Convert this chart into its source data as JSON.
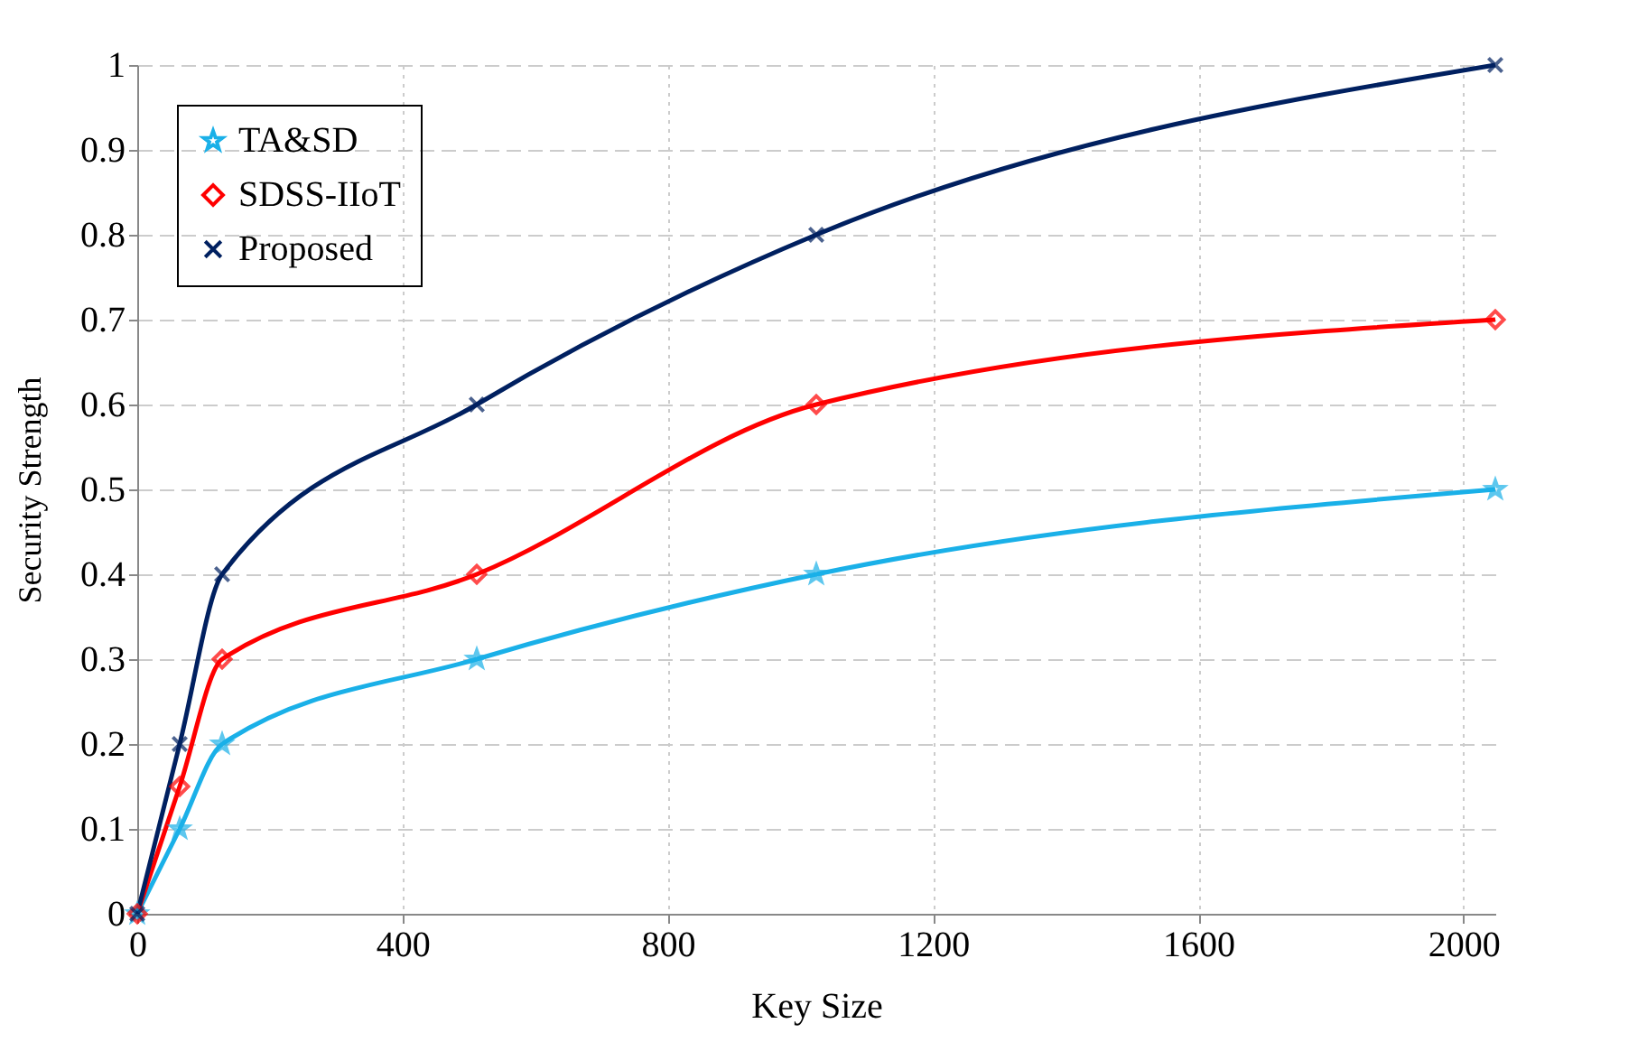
{
  "chart_data": {
    "type": "line",
    "xlabel": "Key Size",
    "ylabel": "Security Strength",
    "x": [
      0,
      64,
      128,
      512,
      1024,
      2048
    ],
    "series": [
      {
        "name": "TA&SD",
        "color": "#1ab0e8",
        "marker": "star",
        "values": [
          0,
          0.1,
          0.2,
          0.3,
          0.4,
          0.5
        ]
      },
      {
        "name": "SDSS-IIoT",
        "color": "#ff0000",
        "marker": "diamond",
        "values": [
          0,
          0.15,
          0.3,
          0.4,
          0.6,
          0.7
        ]
      },
      {
        "name": "Proposed",
        "color": "#002060",
        "marker": "cross",
        "values": [
          0,
          0.2,
          0.4,
          0.6,
          0.8,
          1
        ]
      }
    ],
    "xlim": [
      0,
      2048
    ],
    "xticks": [
      0,
      400,
      800,
      1200,
      1600,
      2000
    ],
    "ylim": [
      0,
      1
    ],
    "yticks": [
      0,
      0.1,
      0.2,
      0.3,
      0.4,
      0.5,
      0.6,
      0.7,
      0.8,
      0.9,
      1
    ],
    "grid": true,
    "legend": "top left",
    "line_style": "solid"
  }
}
